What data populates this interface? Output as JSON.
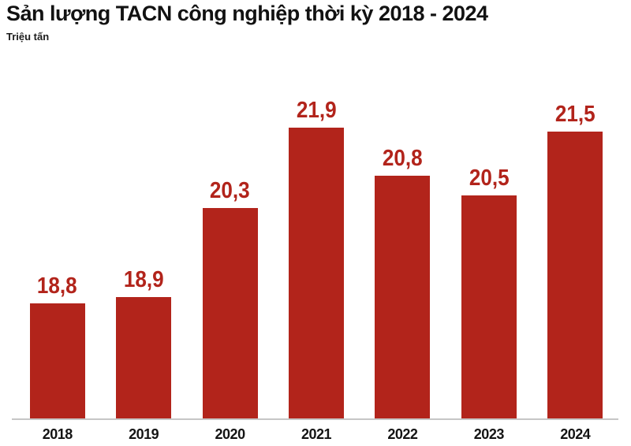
{
  "title": "Sản lượng TACN công nghiệp thời kỳ 2018 - 2024",
  "subtitle": "Triệu tấn",
  "colors": {
    "bar": "#b2241b",
    "value_label": "#b2241b",
    "axis_line": "#c6c6c6",
    "title_text": "#121212",
    "year_label": "#141414",
    "background": "#ffffff"
  },
  "chart_data": {
    "type": "bar",
    "title": "Sản lượng TACN công nghiệp thời kỳ 2018 - 2024",
    "xlabel": "",
    "ylabel": "Triệu tấn",
    "categories": [
      "2018",
      "2019",
      "2020",
      "2021",
      "2022",
      "2023",
      "2024"
    ],
    "values": [
      18.8,
      18.9,
      20.3,
      21.9,
      20.8,
      20.5,
      21.5
    ],
    "value_labels": [
      "18,8",
      "18,9",
      "20,3",
      "21,9",
      "20,8",
      "20,5",
      "21,5"
    ],
    "ylim": [
      17,
      22
    ],
    "grid": false,
    "legend": "none",
    "axis": "x-only"
  }
}
